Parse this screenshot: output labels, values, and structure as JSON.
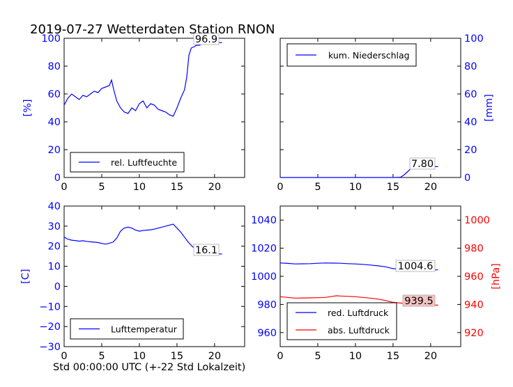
{
  "figure": {
    "title": "2019-07-27 Wetterdaten Station RNON",
    "xlabel": "Std 00:00:00 UTC (+-22 Std Lokalzeit)"
  },
  "colors": {
    "blue": "#0000ff",
    "red": "#ff0000",
    "black": "#000000",
    "label_bg": "#ffffff",
    "label_bg_red": "#f4c2c2"
  },
  "chart_data": [
    {
      "type": "line",
      "id": "humidity",
      "ylabel": "[%]",
      "xlim": [
        0,
        24
      ],
      "ylim": [
        0,
        100
      ],
      "xticks": [
        0,
        5,
        10,
        15,
        20
      ],
      "yticks": [
        0,
        20,
        40,
        60,
        80,
        100
      ],
      "legend_position": "lower-left",
      "annotation": "96.9",
      "series": [
        {
          "name": "rel. Luftfeuchte",
          "color": "#0000ff",
          "x": [
            0,
            0.5,
            1,
            1.5,
            2,
            2.5,
            3,
            3.5,
            4,
            4.5,
            5,
            5.5,
            6,
            6.3,
            6.6,
            7,
            7.5,
            8,
            8.5,
            9,
            9.5,
            10,
            10.5,
            11,
            11.5,
            12,
            12.5,
            13,
            13.5,
            14,
            14.5,
            15,
            15.5,
            16,
            16.3,
            16.6,
            16.9,
            17.3,
            17.6,
            18,
            18.5,
            19,
            19.5,
            20,
            20.5,
            21
          ],
          "y": [
            52,
            57,
            60,
            58,
            56,
            59,
            58,
            60,
            62,
            61,
            64,
            65,
            66,
            70,
            63,
            55,
            50,
            47,
            46,
            50,
            48,
            53,
            55,
            50,
            53,
            52,
            49,
            48,
            47,
            45,
            44,
            50,
            57,
            63,
            72,
            88,
            93,
            94,
            95,
            95,
            96.5,
            96.9,
            96.8,
            96.8,
            96.9,
            96.9
          ]
        }
      ]
    },
    {
      "type": "line",
      "id": "precipitation",
      "ylabel": "[mm]",
      "xlim": [
        0,
        24
      ],
      "ylim": [
        0,
        100
      ],
      "xticks": [
        0,
        5,
        10,
        15,
        20
      ],
      "yticks": [
        0,
        20,
        40,
        60,
        80,
        100
      ],
      "legend_position": "upper-left",
      "annotation": "7.80",
      "series": [
        {
          "name": "kum. Niederschlag",
          "color": "#0000ff",
          "x": [
            0,
            5,
            10,
            15,
            16,
            16.5,
            17,
            17.3,
            17.6,
            18,
            18.5,
            19,
            19.5,
            20,
            21
          ],
          "y": [
            0,
            0,
            0,
            0,
            0.2,
            2,
            4.5,
            6,
            6.8,
            7.2,
            7.5,
            7.6,
            7.7,
            7.8,
            7.8
          ]
        }
      ]
    },
    {
      "type": "line",
      "id": "temperature",
      "ylabel": "[C]",
      "xlim": [
        0,
        24
      ],
      "ylim": [
        -30,
        40
      ],
      "xticks": [
        0,
        5,
        10,
        15,
        20
      ],
      "yticks": [
        -30,
        -20,
        -10,
        0,
        10,
        20,
        30,
        40
      ],
      "legend_position": "lower-left",
      "annotation": "16.1",
      "series": [
        {
          "name": "Lufttemperatur",
          "color": "#0000ff",
          "x": [
            0,
            0.5,
            1,
            1.5,
            2,
            2.5,
            3,
            3.5,
            4,
            4.5,
            5,
            5.5,
            6,
            6.5,
            7,
            7.5,
            8,
            8.5,
            9,
            9.5,
            10,
            10.5,
            11,
            11.5,
            12,
            12.5,
            13,
            13.5,
            14,
            14.5,
            15,
            15.5,
            16,
            16.5,
            17,
            17.5,
            18,
            18.5,
            19,
            19.5,
            20,
            20.5,
            21
          ],
          "y": [
            24.5,
            23.5,
            23,
            22.8,
            22.5,
            22.7,
            22.4,
            22.2,
            22,
            21.8,
            21.4,
            21,
            21.5,
            22,
            24,
            27.5,
            29,
            29.5,
            29,
            28,
            27.5,
            27.8,
            28,
            28.2,
            28.5,
            29,
            29.5,
            30,
            30.5,
            31,
            29,
            27,
            24.5,
            22,
            20,
            18.5,
            17.5,
            17,
            16.8,
            16.5,
            16.3,
            16.2,
            16.1
          ]
        }
      ]
    },
    {
      "type": "line",
      "id": "pressure",
      "ylabel": "[hPa]",
      "xlim": [
        0,
        24
      ],
      "ylim": [
        950,
        1050
      ],
      "ylim_right": [
        910,
        1010
      ],
      "xticks": [
        0,
        5,
        10,
        15,
        20
      ],
      "yticks": [
        960,
        980,
        1000,
        1020,
        1040
      ],
      "yticks_right": [
        920,
        940,
        960,
        980,
        1000
      ],
      "legend_position": "lower-left",
      "annotations": [
        "1004.6",
        "939.5"
      ],
      "series": [
        {
          "name": "red. Luftdruck",
          "color": "#0000ff",
          "axis": "left",
          "x": [
            0,
            1,
            2,
            3,
            4,
            5,
            6,
            7,
            8,
            9,
            10,
            11,
            12,
            13,
            14,
            15,
            16,
            17,
            18,
            19,
            20,
            21
          ],
          "y": [
            1009.5,
            1009.2,
            1008.8,
            1008.9,
            1009,
            1009.3,
            1009.5,
            1009.4,
            1009.3,
            1009,
            1008.8,
            1008.5,
            1008,
            1007.5,
            1006.8,
            1005.5,
            1005,
            1004.8,
            1004.6,
            1004.7,
            1004.6,
            1004.6
          ]
        },
        {
          "name": "abs. Luftdruck",
          "color": "#ff0000",
          "axis": "right",
          "x": [
            0,
            1,
            2,
            3,
            4,
            5,
            6,
            7,
            7.5,
            8,
            9,
            10,
            11,
            12,
            13,
            14,
            15,
            16,
            17,
            18,
            19,
            20,
            21
          ],
          "y": [
            945.5,
            945,
            944.5,
            944.6,
            944.7,
            944.8,
            945,
            945.8,
            946.2,
            946,
            945.8,
            945.5,
            945,
            944.5,
            943.8,
            942.8,
            941.5,
            941,
            940.5,
            940,
            939.7,
            939.5,
            939.5
          ]
        }
      ]
    }
  ]
}
